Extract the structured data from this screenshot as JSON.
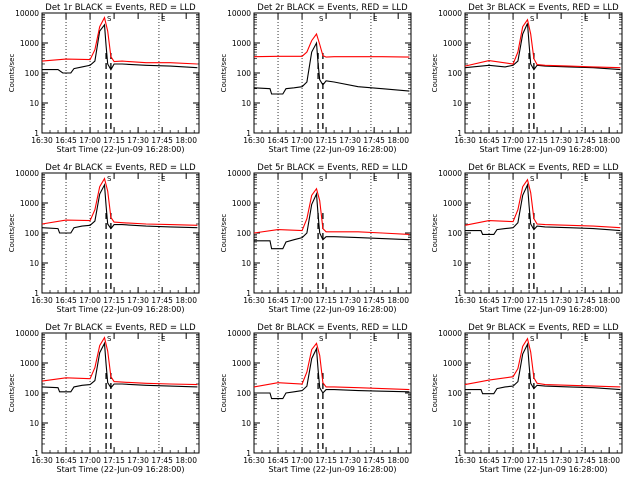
{
  "chart_data": [
    {
      "type": "line",
      "title": "Det 1r BLACK = Events, RED = LLD",
      "xlabel": "Start Time (22-Jun-09 16:28:00)",
      "ylabel": "Counts/sec",
      "yscale": "log",
      "ylim": [
        1,
        10000
      ],
      "xlim": [
        "16:30",
        "18:08"
      ],
      "x_ticks": [
        "16:30",
        "16:45",
        "17:00",
        "17:15",
        "17:30",
        "17:45",
        "18:00"
      ],
      "y_ticks": [
        "1",
        "10",
        "100",
        "1000",
        "10000"
      ],
      "markers_top": [
        "S",
        "E"
      ],
      "series": [
        {
          "color": "#000000",
          "x": [
            "16:30",
            "16:40",
            "16:43",
            "16:48",
            "16:50",
            "16:55",
            "17:00",
            "17:03",
            "17:06",
            "17:09",
            "17:10",
            "17:11",
            "17:13",
            "17:15",
            "17:20",
            "17:35",
            "17:50",
            "18:07"
          ],
          "y": [
            130,
            130,
            100,
            100,
            140,
            160,
            180,
            250,
            2500,
            4000,
            800,
            200,
            130,
            200,
            200,
            180,
            170,
            150
          ]
        },
        {
          "color": "#ff0000",
          "x": [
            "16:30",
            "16:45",
            "17:00",
            "17:03",
            "17:06",
            "17:09",
            "17:11",
            "17:13",
            "17:15",
            "17:20",
            "17:35",
            "17:50",
            "18:07"
          ],
          "y": [
            250,
            290,
            280,
            600,
            3500,
            7000,
            2500,
            350,
            240,
            250,
            220,
            220,
            200
          ]
        }
      ]
    },
    {
      "type": "line",
      "title": "Det 2r BLACK = Events, RED = LLD",
      "xlabel": "Start Time (22-Jun-09 16:28:00)",
      "ylabel": "Counts/sec",
      "yscale": "log",
      "ylim": [
        1,
        10000
      ],
      "xlim": [
        "16:30",
        "18:08"
      ],
      "x_ticks": [
        "16:30",
        "16:45",
        "17:00",
        "17:15",
        "17:30",
        "17:45",
        "18:00"
      ],
      "y_ticks": [
        "1",
        "10",
        "100",
        "1000",
        "10000"
      ],
      "markers_top": [
        "S",
        "E"
      ],
      "series": [
        {
          "color": "#000000",
          "x": [
            "16:30",
            "16:40",
            "16:41",
            "16:48",
            "16:50",
            "16:55",
            "17:00",
            "17:03",
            "17:06",
            "17:09",
            "17:10",
            "17:11",
            "17:13",
            "17:15",
            "17:20",
            "17:35",
            "17:50",
            "18:07"
          ],
          "y": [
            32,
            30,
            20,
            20,
            30,
            32,
            35,
            50,
            500,
            1000,
            200,
            60,
            40,
            55,
            50,
            35,
            30,
            25
          ]
        },
        {
          "color": "#ff0000",
          "x": [
            "16:30",
            "16:45",
            "17:00",
            "17:03",
            "17:06",
            "17:09",
            "17:11",
            "17:13",
            "17:15",
            "17:20",
            "17:35",
            "17:50",
            "18:07"
          ],
          "y": [
            350,
            360,
            360,
            500,
            1200,
            2000,
            900,
            380,
            340,
            350,
            350,
            350,
            340
          ]
        }
      ]
    },
    {
      "type": "line",
      "title": "Det 3r BLACK = Events, RED = LLD",
      "xlabel": "Start Time (22-Jun-09 16:28:00)",
      "ylabel": "Counts/sec",
      "yscale": "log",
      "ylim": [
        1,
        10000
      ],
      "xlim": [
        "16:30",
        "18:08"
      ],
      "x_ticks": [
        "16:30",
        "16:45",
        "17:00",
        "17:15",
        "17:30",
        "17:45",
        "18:00"
      ],
      "y_ticks": [
        "1",
        "10",
        "100",
        "1000",
        "10000"
      ],
      "markers_top": [
        "S",
        "E"
      ],
      "series": [
        {
          "color": "#000000",
          "x": [
            "16:30",
            "16:45",
            "16:55",
            "17:00",
            "17:03",
            "17:06",
            "17:09",
            "17:10",
            "17:11",
            "17:13",
            "17:15",
            "17:20",
            "17:35",
            "17:50",
            "18:07"
          ],
          "y": [
            150,
            180,
            160,
            180,
            250,
            2000,
            4500,
            900,
            200,
            130,
            180,
            170,
            160,
            150,
            130
          ]
        },
        {
          "color": "#ff0000",
          "x": [
            "16:30",
            "16:45",
            "17:00",
            "17:03",
            "17:06",
            "17:09",
            "17:11",
            "17:13",
            "17:15",
            "17:20",
            "17:35",
            "17:50",
            "18:07"
          ],
          "y": [
            170,
            260,
            200,
            500,
            3500,
            6000,
            2000,
            300,
            190,
            180,
            170,
            160,
            150
          ]
        }
      ]
    },
    {
      "type": "line",
      "title": "Det 4r BLACK = Events, RED = LLD",
      "xlabel": "Start Time (22-Jun-09 16:28:00)",
      "ylabel": "Counts/sec",
      "yscale": "log",
      "ylim": [
        1,
        10000
      ],
      "xlim": [
        "16:30",
        "18:08"
      ],
      "x_ticks": [
        "16:30",
        "16:45",
        "17:00",
        "17:15",
        "17:30",
        "17:45",
        "18:00"
      ],
      "y_ticks": [
        "1",
        "10",
        "100",
        "1000",
        "10000"
      ],
      "markers_top": [
        "S",
        "E"
      ],
      "series": [
        {
          "color": "#000000",
          "x": [
            "16:30",
            "16:40",
            "16:41",
            "16:48",
            "16:50",
            "16:55",
            "17:00",
            "17:03",
            "17:06",
            "17:09",
            "17:10",
            "17:11",
            "17:13",
            "17:15",
            "17:20",
            "17:35",
            "17:50",
            "18:07"
          ],
          "y": [
            150,
            140,
            100,
            100,
            150,
            170,
            180,
            250,
            2000,
            4000,
            800,
            200,
            140,
            190,
            190,
            170,
            160,
            150
          ]
        },
        {
          "color": "#ff0000",
          "x": [
            "16:30",
            "16:45",
            "17:00",
            "17:03",
            "17:06",
            "17:09",
            "17:11",
            "17:13",
            "17:15",
            "17:20",
            "17:35",
            "17:50",
            "18:07"
          ],
          "y": [
            200,
            270,
            260,
            600,
            3500,
            6500,
            2500,
            330,
            230,
            220,
            200,
            190,
            180
          ]
        }
      ]
    },
    {
      "type": "line",
      "title": "Det 5r BLACK = Events, RED = LLD",
      "xlabel": "Start Time (22-Jun-09 16:28:00)",
      "ylabel": "Counts/sec",
      "yscale": "log",
      "ylim": [
        1,
        10000
      ],
      "xlim": [
        "16:30",
        "18:08"
      ],
      "x_ticks": [
        "16:30",
        "16:45",
        "17:00",
        "17:15",
        "17:30",
        "17:45",
        "18:00"
      ],
      "y_ticks": [
        "1",
        "10",
        "100",
        "1000",
        "10000"
      ],
      "markers_top": [
        "S",
        "E"
      ],
      "series": [
        {
          "color": "#000000",
          "x": [
            "16:30",
            "16:40",
            "16:41",
            "16:48",
            "16:50",
            "16:55",
            "17:00",
            "17:03",
            "17:06",
            "17:09",
            "17:10",
            "17:11",
            "17:13",
            "17:15",
            "17:20",
            "17:35",
            "17:50",
            "18:07"
          ],
          "y": [
            55,
            55,
            30,
            30,
            50,
            60,
            70,
            100,
            900,
            2000,
            400,
            100,
            60,
            75,
            75,
            70,
            65,
            60
          ]
        },
        {
          "color": "#ff0000",
          "x": [
            "16:30",
            "16:45",
            "17:00",
            "17:03",
            "17:06",
            "17:09",
            "17:11",
            "17:13",
            "17:15",
            "17:20",
            "17:35",
            "17:50",
            "18:07"
          ],
          "y": [
            100,
            130,
            120,
            300,
            1800,
            3000,
            1200,
            140,
            110,
            110,
            110,
            100,
            90
          ]
        }
      ]
    },
    {
      "type": "line",
      "title": "Det 6r BLACK = Events, RED = LLD",
      "xlabel": "Start Time (22-Jun-09 16:28:00)",
      "ylabel": "Counts/sec",
      "yscale": "log",
      "ylim": [
        1,
        10000
      ],
      "xlim": [
        "16:30",
        "18:08"
      ],
      "x_ticks": [
        "16:30",
        "16:45",
        "17:00",
        "17:15",
        "17:30",
        "17:45",
        "18:00"
      ],
      "y_ticks": [
        "1",
        "10",
        "100",
        "1000",
        "10000"
      ],
      "markers_top": [
        "S",
        "E"
      ],
      "series": [
        {
          "color": "#000000",
          "x": [
            "16:30",
            "16:40",
            "16:41",
            "16:48",
            "16:50",
            "16:55",
            "17:00",
            "17:03",
            "17:06",
            "17:09",
            "17:10",
            "17:11",
            "17:13",
            "17:15",
            "17:20",
            "17:35",
            "17:50",
            "18:07"
          ],
          "y": [
            120,
            120,
            90,
            90,
            130,
            140,
            150,
            220,
            1800,
            4000,
            800,
            200,
            130,
            170,
            160,
            150,
            140,
            120
          ]
        },
        {
          "color": "#ff0000",
          "x": [
            "16:30",
            "16:45",
            "17:00",
            "17:03",
            "17:06",
            "17:09",
            "17:11",
            "17:13",
            "17:15",
            "17:20",
            "17:35",
            "17:50",
            "18:07"
          ],
          "y": [
            180,
            260,
            240,
            600,
            3500,
            6000,
            2200,
            300,
            200,
            190,
            180,
            170,
            150
          ]
        }
      ]
    },
    {
      "type": "line",
      "title": "Det 7r BLACK = Events, RED = LLD",
      "xlabel": "Start Time (22-Jun-09 16:28:00)",
      "ylabel": "Counts/sec",
      "yscale": "log",
      "ylim": [
        1,
        10000
      ],
      "xlim": [
        "16:30",
        "18:08"
      ],
      "x_ticks": [
        "16:30",
        "16:45",
        "17:00",
        "17:15",
        "17:30",
        "17:45",
        "18:00"
      ],
      "y_ticks": [
        "1",
        "10",
        "100",
        "1000",
        "10000"
      ],
      "markers_top": [
        "S",
        "E"
      ],
      "series": [
        {
          "color": "#000000",
          "x": [
            "16:30",
            "16:40",
            "16:41",
            "16:48",
            "16:50",
            "16:55",
            "17:00",
            "17:03",
            "17:06",
            "17:09",
            "17:10",
            "17:11",
            "17:13",
            "17:15",
            "17:20",
            "17:35",
            "17:50",
            "18:07"
          ],
          "y": [
            160,
            150,
            110,
            110,
            160,
            180,
            190,
            260,
            2200,
            4500,
            900,
            220,
            150,
            200,
            200,
            180,
            170,
            160
          ]
        },
        {
          "color": "#ff0000",
          "x": [
            "16:30",
            "16:45",
            "17:00",
            "17:03",
            "17:06",
            "17:09",
            "17:11",
            "17:13",
            "17:15",
            "17:20",
            "17:35",
            "17:50",
            "18:07"
          ],
          "y": [
            250,
            320,
            300,
            700,
            3800,
            7000,
            2500,
            350,
            240,
            230,
            210,
            200,
            190
          ]
        }
      ]
    },
    {
      "type": "line",
      "title": "Det 8r BLACK = Events, RED = LLD",
      "xlabel": "Start Time (22-Jun-09 16:28:00)",
      "ylabel": "Counts/sec",
      "yscale": "log",
      "ylim": [
        1,
        10000
      ],
      "xlim": [
        "16:30",
        "18:08"
      ],
      "x_ticks": [
        "16:30",
        "16:45",
        "17:00",
        "17:15",
        "17:30",
        "17:45",
        "18:00"
      ],
      "y_ticks": [
        "1",
        "10",
        "100",
        "1000",
        "10000"
      ],
      "markers_top": [
        "S",
        "E"
      ],
      "series": [
        {
          "color": "#000000",
          "x": [
            "16:30",
            "16:40",
            "16:41",
            "16:48",
            "16:50",
            "16:55",
            "17:00",
            "17:03",
            "17:06",
            "17:09",
            "17:10",
            "17:11",
            "17:13",
            "17:15",
            "17:20",
            "17:35",
            "17:50",
            "18:07"
          ],
          "y": [
            100,
            100,
            65,
            65,
            100,
            110,
            120,
            170,
            1400,
            3000,
            600,
            150,
            100,
            130,
            130,
            120,
            115,
            110
          ]
        },
        {
          "color": "#ff0000",
          "x": [
            "16:30",
            "16:45",
            "17:00",
            "17:03",
            "17:06",
            "17:09",
            "17:11",
            "17:13",
            "17:15",
            "17:20",
            "17:35",
            "17:50",
            "18:07"
          ],
          "y": [
            160,
            220,
            200,
            500,
            2800,
            4500,
            1800,
            220,
            160,
            160,
            150,
            140,
            130
          ]
        }
      ]
    },
    {
      "type": "line",
      "title": "Det 9r BLACK = Events, RED = LLD",
      "xlabel": "Start Time (22-Jun-09 16:28:00)",
      "ylabel": "Counts/sec",
      "yscale": "log",
      "ylim": [
        1,
        10000
      ],
      "xlim": [
        "16:30",
        "18:08"
      ],
      "x_ticks": [
        "16:30",
        "16:45",
        "17:00",
        "17:15",
        "17:30",
        "17:45",
        "18:00"
      ],
      "y_ticks": [
        "1",
        "10",
        "100",
        "1000",
        "10000"
      ],
      "markers_top": [
        "S",
        "E"
      ],
      "series": [
        {
          "color": "#000000",
          "x": [
            "16:30",
            "16:40",
            "16:41",
            "16:48",
            "16:50",
            "16:55",
            "17:00",
            "17:03",
            "17:06",
            "17:09",
            "17:10",
            "17:11",
            "17:13",
            "17:15",
            "17:20",
            "17:35",
            "17:50",
            "18:07"
          ],
          "y": [
            130,
            130,
            95,
            95,
            140,
            160,
            170,
            240,
            2000,
            4200,
            850,
            210,
            140,
            180,
            170,
            160,
            150,
            130
          ]
        },
        {
          "color": "#ff0000",
          "x": [
            "16:30",
            "16:45",
            "17:00",
            "17:03",
            "17:06",
            "17:09",
            "17:11",
            "17:13",
            "17:15",
            "17:20",
            "17:35",
            "17:50",
            "18:07"
          ],
          "y": [
            190,
            270,
            350,
            650,
            3600,
            6500,
            2300,
            320,
            210,
            190,
            180,
            170,
            160
          ]
        }
      ]
    }
  ]
}
